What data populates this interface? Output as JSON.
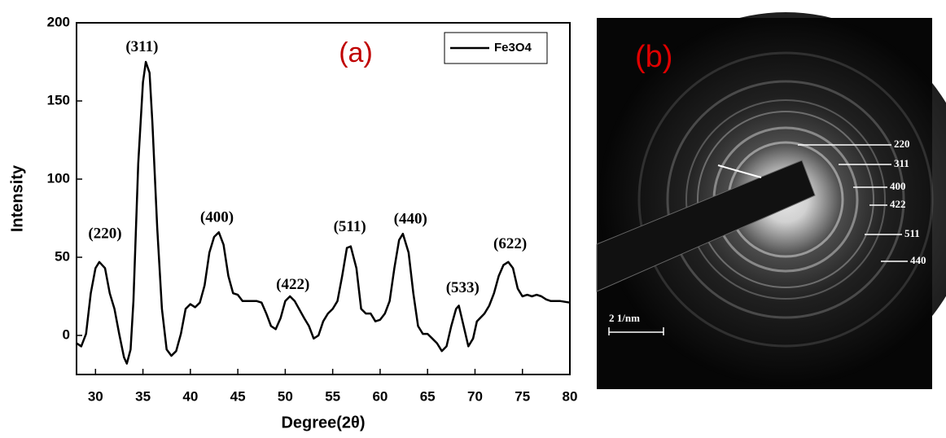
{
  "chart_data": {
    "type": "line",
    "panel_label": "(a)",
    "xlabel": "Degree(2θ)",
    "ylabel": "Intensity",
    "xlim": [
      28,
      80
    ],
    "ylim": [
      -25,
      200
    ],
    "xticks": [
      30,
      35,
      40,
      45,
      50,
      55,
      60,
      65,
      70,
      75,
      80
    ],
    "yticks": [
      0,
      50,
      100,
      150,
      200
    ],
    "legend": "upper right",
    "x": [
      28,
      28.5,
      29,
      29.5,
      30,
      30.4,
      31,
      31.5,
      32,
      32.5,
      33,
      33.3,
      33.7,
      34,
      34.5,
      35,
      35.3,
      35.7,
      36,
      36.5,
      37,
      37.5,
      38,
      38.5,
      39,
      39.5,
      40,
      40.5,
      41,
      41.5,
      42,
      42.5,
      43,
      43.5,
      44,
      44.5,
      45,
      45.5,
      46,
      47,
      47.5,
      48,
      48.5,
      49,
      49.5,
      50,
      50.5,
      51,
      52,
      52.5,
      53,
      53.5,
      54,
      54.5,
      55,
      55.5,
      56,
      56.5,
      56.9,
      57.5,
      58,
      58.5,
      59,
      59.5,
      60,
      60.5,
      61,
      61.5,
      62,
      62.4,
      63,
      63.5,
      64,
      64.5,
      65,
      65.5,
      66,
      66.5,
      67,
      67.5,
      68,
      68.3,
      68.8,
      69.3,
      69.8,
      70.2,
      71,
      71.5,
      72,
      72.5,
      73,
      73.5,
      74,
      74.5,
      75,
      75.5,
      76,
      76.5,
      77,
      77.5,
      78,
      79,
      80
    ],
    "series": [
      {
        "name": "Fe3O4",
        "color": "#000000",
        "values": [
          -5,
          -7,
          1,
          27,
          43,
          47,
          43,
          27,
          17,
          1,
          -14,
          -18,
          -9,
          22,
          110,
          162,
          175,
          168,
          136,
          69,
          17,
          -9,
          -13,
          -10,
          1,
          17,
          20,
          18,
          21,
          32,
          53,
          63,
          66,
          58,
          38,
          27,
          26,
          22,
          22,
          22,
          21,
          14,
          6,
          4,
          11,
          22,
          25,
          22,
          11,
          6,
          -2,
          0,
          9,
          14,
          17,
          22,
          38,
          56,
          57,
          43,
          17,
          14,
          14,
          9,
          10,
          14,
          22,
          43,
          61,
          65,
          53,
          27,
          6,
          1,
          1,
          -2,
          -5,
          -10,
          -7,
          6,
          17,
          19,
          6,
          -7,
          -2,
          9,
          14,
          19,
          27,
          38,
          45,
          47,
          43,
          30,
          25,
          26,
          25,
          26,
          25,
          23,
          22,
          22,
          21
        ]
      }
    ],
    "annotations": [
      {
        "text": "(220)",
        "x": 31,
        "y": 64.5
      },
      {
        "text": "(311)",
        "x": 34.9,
        "y": 184
      },
      {
        "text": "(400)",
        "x": 42.8,
        "y": 75
      },
      {
        "text": "(422)",
        "x": 50.8,
        "y": 32
      },
      {
        "text": "(511)",
        "x": 56.8,
        "y": 69
      },
      {
        "text": "(440)",
        "x": 63.2,
        "y": 74
      },
      {
        "text": "(533)",
        "x": 68.7,
        "y": 30
      },
      {
        "text": "(622)",
        "x": 73.7,
        "y": 58
      }
    ]
  },
  "image_panel": {
    "label": "(b)",
    "ring_labels": [
      "220",
      "311",
      "400",
      "422",
      "511",
      "440"
    ],
    "scale_bar": "2 1/nm"
  }
}
